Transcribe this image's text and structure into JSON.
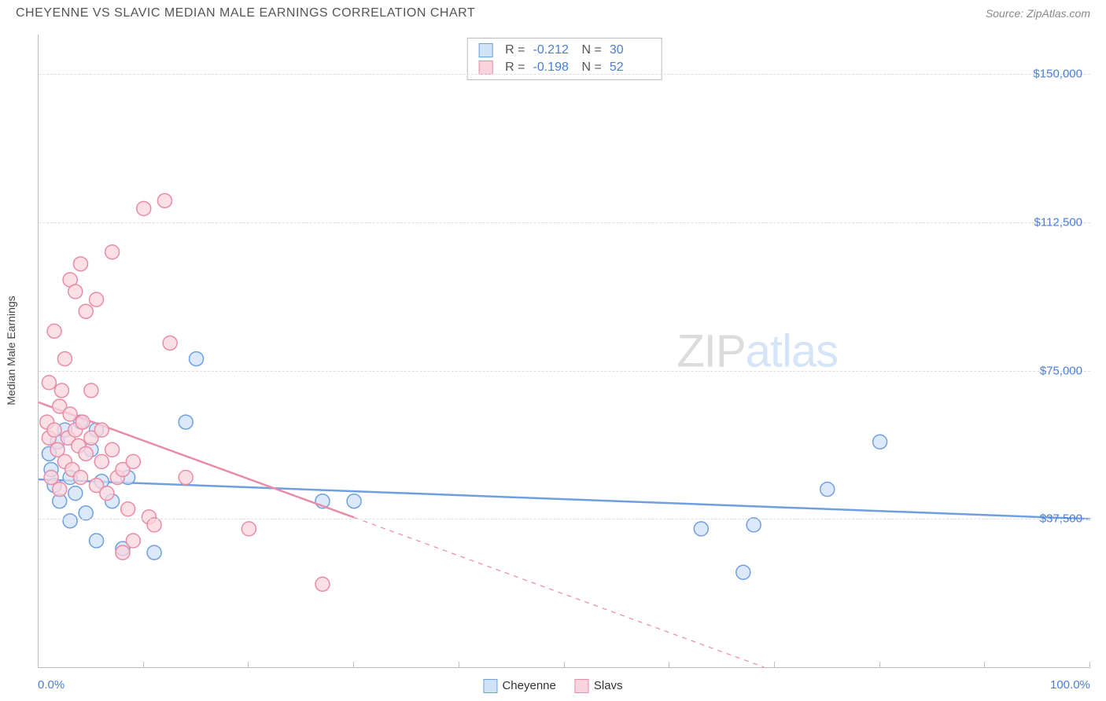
{
  "header": {
    "title": "CHEYENNE VS SLAVIC MEDIAN MALE EARNINGS CORRELATION CHART",
    "source_prefix": "Source: ",
    "source_name": "ZipAtlas.com"
  },
  "watermark": {
    "part1": "ZIP",
    "part2": "atlas"
  },
  "chart": {
    "type": "scatter",
    "ylabel": "Median Male Earnings",
    "xlim": [
      0,
      100
    ],
    "ylim": [
      0,
      160000
    ],
    "x_ticks": [
      0,
      10,
      20,
      30,
      40,
      50,
      60,
      70,
      80,
      90,
      100
    ],
    "x_tick_labels": {
      "0": "0.0%",
      "100": "100.0%"
    },
    "y_gridlines": [
      37500,
      75000,
      112500,
      150000
    ],
    "y_tick_labels": [
      "$37,500",
      "$75,000",
      "$112,500",
      "$150,000"
    ],
    "background_color": "#ffffff",
    "grid_color": "#dddddd",
    "axis_color": "#bbbbbb",
    "label_color": "#4a7dd6",
    "marker_radius": 9,
    "marker_stroke_width": 1.5,
    "trend_line_width": 2.5,
    "series": [
      {
        "name": "Cheyenne",
        "fill": "#cfe2f8",
        "stroke": "#6f9fe0",
        "stats": {
          "R": "-0.212",
          "N": "30"
        },
        "trend": {
          "x1": 0,
          "y1": 47500,
          "x2": 100,
          "y2": 37500,
          "dashed_after_x": null
        },
        "points": [
          [
            1.0,
            54000
          ],
          [
            1.2,
            50000
          ],
          [
            1.5,
            46000
          ],
          [
            1.8,
            57000
          ],
          [
            2.0,
            42000
          ],
          [
            2.5,
            60000
          ],
          [
            3.0,
            48000
          ],
          [
            3.0,
            37000
          ],
          [
            3.5,
            44000
          ],
          [
            4.0,
            62000
          ],
          [
            4.5,
            39000
          ],
          [
            5.0,
            55000
          ],
          [
            5.5,
            32000
          ],
          [
            5.5,
            60000
          ],
          [
            6.0,
            47000
          ],
          [
            7.0,
            42000
          ],
          [
            8.0,
            30000
          ],
          [
            8.5,
            48000
          ],
          [
            11.0,
            29000
          ],
          [
            14.0,
            62000
          ],
          [
            15.0,
            78000
          ],
          [
            27.0,
            42000
          ],
          [
            30.0,
            42000
          ],
          [
            63.0,
            35000
          ],
          [
            67.0,
            24000
          ],
          [
            68.0,
            36000
          ],
          [
            75.0,
            45000
          ],
          [
            80.0,
            57000
          ]
        ]
      },
      {
        "name": "Slavs",
        "fill": "#f9d4de",
        "stroke": "#e88ba5",
        "stats": {
          "R": "-0.198",
          "N": "52"
        },
        "trend": {
          "x1": 0,
          "y1": 67000,
          "x2": 69,
          "y2": 0,
          "dashed_after_x": 30
        },
        "points": [
          [
            0.8,
            62000
          ],
          [
            1.0,
            58000
          ],
          [
            1.0,
            72000
          ],
          [
            1.2,
            48000
          ],
          [
            1.5,
            60000
          ],
          [
            1.5,
            85000
          ],
          [
            1.8,
            55000
          ],
          [
            2.0,
            66000
          ],
          [
            2.0,
            45000
          ],
          [
            2.2,
            70000
          ],
          [
            2.5,
            52000
          ],
          [
            2.5,
            78000
          ],
          [
            2.8,
            58000
          ],
          [
            3.0,
            64000
          ],
          [
            3.0,
            98000
          ],
          [
            3.2,
            50000
          ],
          [
            3.5,
            60000
          ],
          [
            3.5,
            95000
          ],
          [
            3.8,
            56000
          ],
          [
            4.0,
            102000
          ],
          [
            4.0,
            48000
          ],
          [
            4.2,
            62000
          ],
          [
            4.5,
            54000
          ],
          [
            4.5,
            90000
          ],
          [
            5.0,
            58000
          ],
          [
            5.0,
            70000
          ],
          [
            5.5,
            46000
          ],
          [
            5.5,
            93000
          ],
          [
            6.0,
            52000
          ],
          [
            6.0,
            60000
          ],
          [
            6.5,
            44000
          ],
          [
            7.0,
            55000
          ],
          [
            7.0,
            105000
          ],
          [
            7.5,
            48000
          ],
          [
            8.0,
            50000
          ],
          [
            8.0,
            29000
          ],
          [
            8.5,
            40000
          ],
          [
            9.0,
            52000
          ],
          [
            9.0,
            32000
          ],
          [
            10.0,
            116000
          ],
          [
            10.5,
            38000
          ],
          [
            11.0,
            36000
          ],
          [
            12.0,
            118000
          ],
          [
            12.5,
            82000
          ],
          [
            14.0,
            48000
          ],
          [
            20.0,
            35000
          ],
          [
            27.0,
            21000
          ]
        ]
      }
    ],
    "bottom_legend": [
      {
        "label": "Cheyenne",
        "fill": "#cfe2f8",
        "stroke": "#6f9fe0"
      },
      {
        "label": "Slavs",
        "fill": "#f9d4de",
        "stroke": "#e88ba5"
      }
    ],
    "stats_box": {
      "r_label": "R =",
      "n_label": "N =",
      "rows": [
        {
          "swatch_fill": "#cfe2f8",
          "swatch_stroke": "#6f9fe0",
          "R": "-0.212",
          "N": "30"
        },
        {
          "swatch_fill": "#f9d4de",
          "swatch_stroke": "#e88ba5",
          "R": "-0.198",
          "N": "52"
        }
      ]
    }
  }
}
